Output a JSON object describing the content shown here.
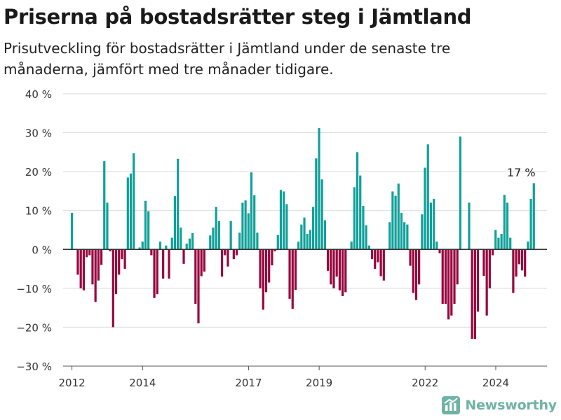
{
  "header": {
    "title": "Priserna på bostadsrätter steg i Jämtland",
    "subtitle": "Prisutveckling för bostadsrätter i Jämtland under de senaste tre månaderna, jämfört med tre månader tidigare."
  },
  "brand": {
    "name": "Newsworthy",
    "icon": "bar-chart-logo-icon"
  },
  "colors": {
    "positive": "#10a19a",
    "negative": "#97063e",
    "grid": "#d9d9d9",
    "axis": "#333333"
  },
  "chart_data": {
    "type": "bar",
    "y_unit": "%",
    "ylim": [
      -30,
      40
    ],
    "yticks": [
      -30,
      -20,
      -10,
      0,
      10,
      20,
      30,
      40
    ],
    "ytick_labels": [
      "−30 %",
      "−20 %",
      "−10 %",
      "0 %",
      "10 %",
      "20 %",
      "30 %",
      "40 %"
    ],
    "xlim": [
      2011.75,
      2025.45
    ],
    "xticks": [
      2012,
      2014,
      2017,
      2019,
      2022,
      2024
    ],
    "xtick_labels": [
      "2012",
      "2014",
      "2017",
      "2019",
      "2022",
      "2024"
    ],
    "grid": true,
    "annotation": {
      "text": "17 %",
      "x": 2024.96,
      "y": 17
    },
    "start": 2012.0,
    "step": 0.0833,
    "values": [
      9.4,
      0,
      -6.5,
      -10,
      -10.5,
      -2,
      -1.5,
      -9,
      -13.5,
      -8,
      -4,
      22.7,
      12,
      -0.5,
      -20,
      -11.5,
      -6.5,
      -2.5,
      -5,
      18.5,
      19.5,
      24.7,
      0,
      0.5,
      2,
      12.5,
      9.8,
      -1.5,
      -12.5,
      -11.5,
      2,
      -7.5,
      1,
      -7.5,
      3,
      13.7,
      23.3,
      5.6,
      -3.7,
      1.5,
      2.8,
      4.2,
      -14,
      -19,
      -6.9,
      -5.7,
      0,
      3.6,
      5.6,
      10.9,
      7.3,
      -7,
      -1.5,
      -4.4,
      7.3,
      -2.5,
      -1.5,
      4.3,
      12,
      12.6,
      9.3,
      19.8,
      13.9,
      4.3,
      -10,
      -15.5,
      -11,
      -8.5,
      -4.1,
      -0.5,
      3.7,
      15.3,
      14.9,
      11.6,
      -12.7,
      -15.3,
      -10.4,
      2,
      6.4,
      8.2,
      4,
      5,
      10.9,
      23.4,
      31.2,
      18,
      7.5,
      -5.5,
      -9,
      -10,
      -7,
      -10.5,
      -12,
      -11,
      0,
      2,
      16,
      25,
      19,
      11.2,
      6.2,
      1,
      -2.5,
      -5,
      -3.3,
      -6.9,
      -8,
      0,
      7,
      14.9,
      13.8,
      16.9,
      9.4,
      7,
      6.4,
      -4.2,
      -11.2,
      -13,
      -9,
      9,
      21,
      27,
      12,
      13,
      2,
      -1,
      -14,
      -14,
      -18,
      -17,
      -14,
      -9,
      29,
      0,
      0,
      12,
      -23,
      -23,
      -16,
      0,
      -6.8,
      -17,
      -10,
      -1.5,
      5,
      3,
      4,
      14,
      12,
      3,
      -11.2,
      -7,
      -3.8,
      -5.4,
      -7,
      2,
      13,
      17
    ]
  }
}
